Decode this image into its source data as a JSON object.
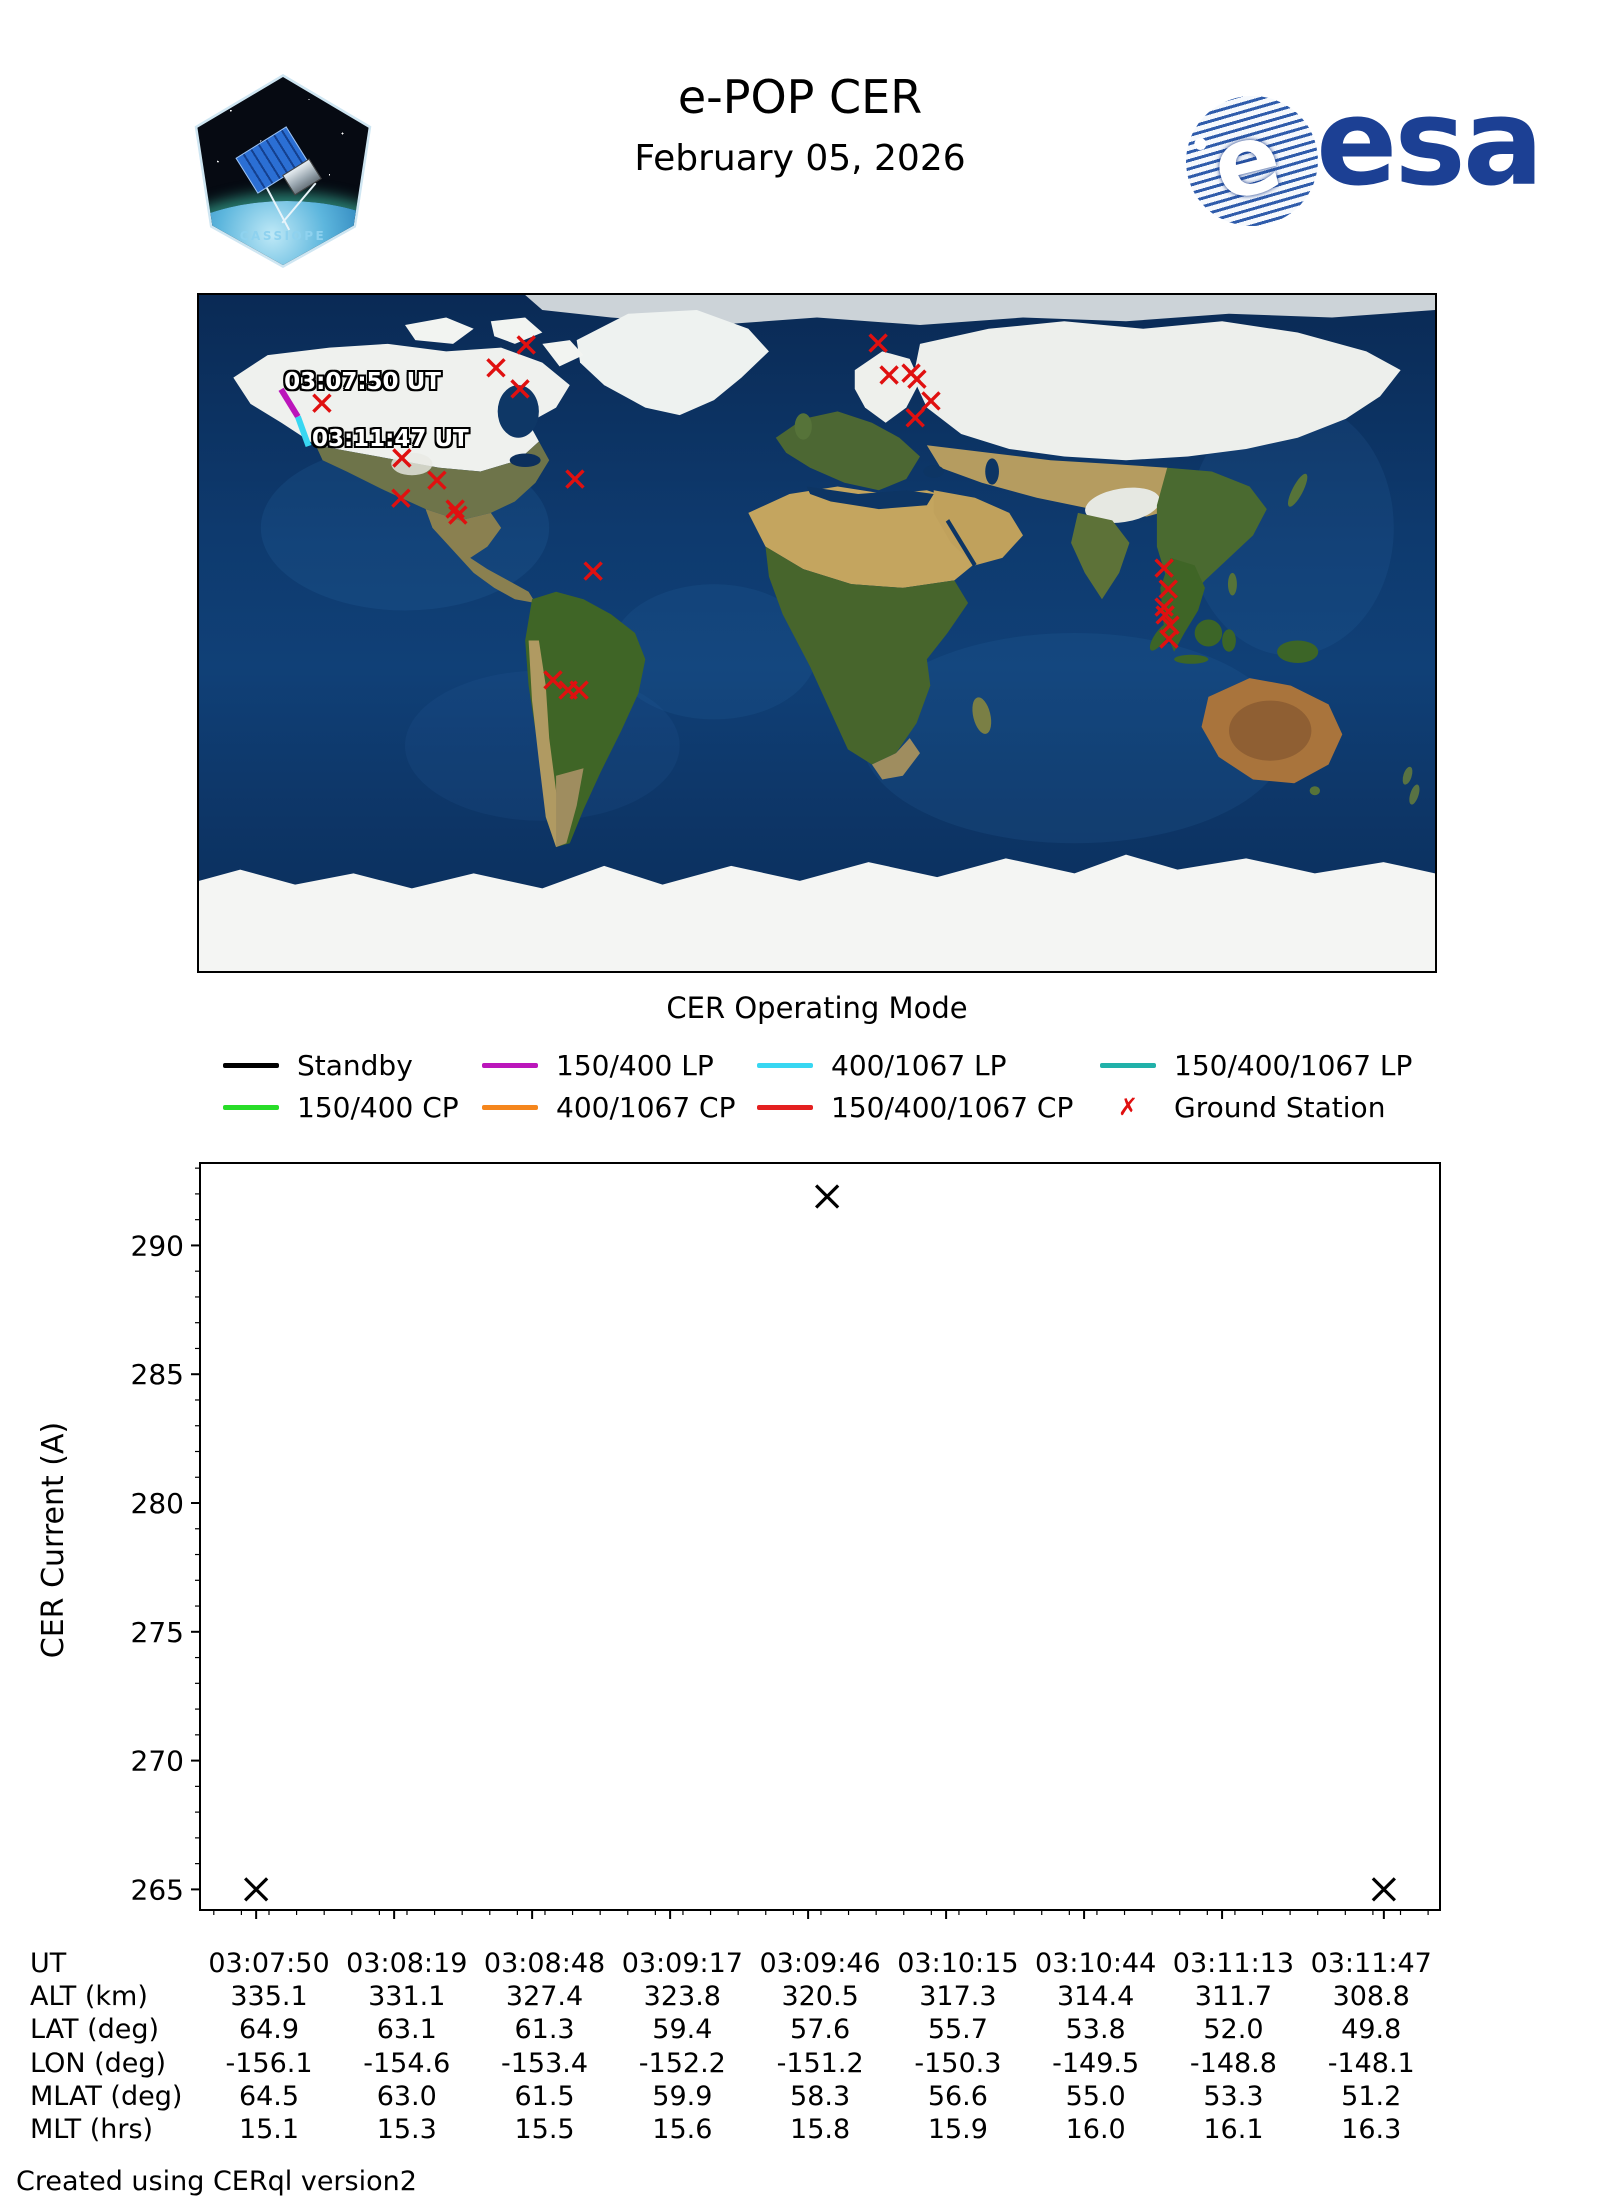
{
  "header": {
    "title": "e-POP CER",
    "date": "February 05, 2026",
    "patch_label": "CASSIOPE",
    "esa_wordmark": "esa",
    "esa_emblem_letter": "e"
  },
  "map": {
    "caption": "CER Operating Mode",
    "annotations": [
      {
        "text": "03:07:50 UT",
        "lon": -155.2,
        "lat": 70.2
      },
      {
        "text": "03:11:47 UT",
        "lon": -147.1,
        "lat": 55.1
      }
    ],
    "track_segments": [
      {
        "mode": "150/400 LP",
        "color": "#bb16bb",
        "from_lon": -156.1,
        "from_lat": 64.9,
        "to_lon": -151.2,
        "to_lat": 57.6
      },
      {
        "mode": "400/1067 LP",
        "color": "#38d7f2",
        "from_lon": -151.2,
        "from_lat": 57.6,
        "to_lon": -148.1,
        "to_lat": 49.8
      }
    ],
    "station_color": "#e01010",
    "ground_stations": [
      {
        "lon": -84.7,
        "lat": 76.7
      },
      {
        "lon": -93.5,
        "lat": 70.6
      },
      {
        "lon": -86.5,
        "lat": 65.0
      },
      {
        "lon": -144.2,
        "lat": 61.2
      },
      {
        "lon": -120.9,
        "lat": 46.6
      },
      {
        "lon": -110.7,
        "lat": 40.7
      },
      {
        "lon": -121.2,
        "lat": 35.9
      },
      {
        "lon": -105.4,
        "lat": 33.0
      },
      {
        "lon": -104.6,
        "lat": 31.4
      },
      {
        "lon": -70.5,
        "lat": 41.0
      },
      {
        "lon": -65.2,
        "lat": 16.5
      },
      {
        "lon": 17.8,
        "lat": 77.2
      },
      {
        "lon": 21.0,
        "lat": 68.7
      },
      {
        "lon": 27.4,
        "lat": 69.2
      },
      {
        "lon": 29.1,
        "lat": 67.6
      },
      {
        "lon": 33.2,
        "lat": 61.8
      },
      {
        "lon": 28.6,
        "lat": 57.3
      },
      {
        "lon": 101.1,
        "lat": 17.3
      },
      {
        "lon": 102.3,
        "lat": 11.7
      },
      {
        "lon": 101.1,
        "lat": 6.9
      },
      {
        "lon": 101.4,
        "lat": 4.8
      },
      {
        "lon": 102.8,
        "lat": 2.1
      },
      {
        "lon": 102.5,
        "lat": -1.6
      },
      {
        "lon": -76.9,
        "lat": -12.5
      },
      {
        "lon": -72.5,
        "lat": -15.2
      },
      {
        "lon": -69.3,
        "lat": -15.2
      }
    ]
  },
  "legend": {
    "rows": [
      [
        {
          "label": "Standby",
          "type": "line",
          "color": "#000000"
        },
        {
          "label": "150/400 LP",
          "type": "line",
          "color": "#bb16bb"
        },
        {
          "label": "400/1067 LP",
          "type": "line",
          "color": "#38d7f2"
        },
        {
          "label": "150/400/1067 LP",
          "type": "line",
          "color": "#21b1a9"
        }
      ],
      [
        {
          "label": "150/400 CP",
          "type": "line",
          "color": "#28dd28"
        },
        {
          "label": "400/1067 CP",
          "type": "line",
          "color": "#f5861d"
        },
        {
          "label": "150/400/1067 CP",
          "type": "line",
          "color": "#e42020"
        },
        {
          "label": "Ground Station",
          "type": "marker",
          "color": "#e01010"
        }
      ]
    ]
  },
  "chart_data": {
    "type": "scatter",
    "title": "",
    "xlabel": "",
    "ylabel": "CER Current (A)",
    "marker": "x",
    "marker_color": "#000000",
    "grid": false,
    "points": [
      {
        "ut": "03:07:50",
        "seconds": 470,
        "current": 0.265
      },
      {
        "ut": "03:09:50",
        "seconds": 590,
        "current": 0.2919
      },
      {
        "ut": "03:11:47",
        "seconds": 707,
        "current": 0.265
      }
    ],
    "ylim": [
      0.2642,
      0.2932
    ],
    "yticks": [
      0.265,
      0.27,
      0.275,
      0.28,
      0.285,
      0.29
    ],
    "y_minor_step": 0.001,
    "xlim_seconds": [
      458.2,
      718.8
    ],
    "xtick_seconds": [
      470,
      499,
      528,
      557,
      586,
      615,
      644,
      673,
      707
    ],
    "x_minor_step_seconds": 5.8
  },
  "table": {
    "rows": [
      {
        "label": "UT",
        "values": [
          "03:07:50",
          "03:08:19",
          "03:08:48",
          "03:09:17",
          "03:09:46",
          "03:10:15",
          "03:10:44",
          "03:11:13",
          "03:11:47"
        ]
      },
      {
        "label": "ALT (km)",
        "values": [
          "335.1",
          "331.1",
          "327.4",
          "323.8",
          "320.5",
          "317.3",
          "314.4",
          "311.7",
          "308.8"
        ]
      },
      {
        "label": "LAT (deg)",
        "values": [
          "64.9",
          "63.1",
          "61.3",
          "59.4",
          "57.6",
          "55.7",
          "53.8",
          "52.0",
          "49.8"
        ]
      },
      {
        "label": "LON (deg)",
        "values": [
          "-156.1",
          "-154.6",
          "-153.4",
          "-152.2",
          "-151.2",
          "-150.3",
          "-149.5",
          "-148.8",
          "-148.1"
        ]
      },
      {
        "label": "MLAT (deg)",
        "values": [
          "64.5",
          "63.0",
          "61.5",
          "59.9",
          "58.3",
          "56.6",
          "55.0",
          "53.3",
          "51.2"
        ]
      },
      {
        "label": "MLT (hrs)",
        "values": [
          "15.1",
          "15.3",
          "15.5",
          "15.6",
          "15.8",
          "15.9",
          "16.0",
          "16.1",
          "16.3"
        ]
      }
    ]
  },
  "footer": "Created using CERql version2"
}
